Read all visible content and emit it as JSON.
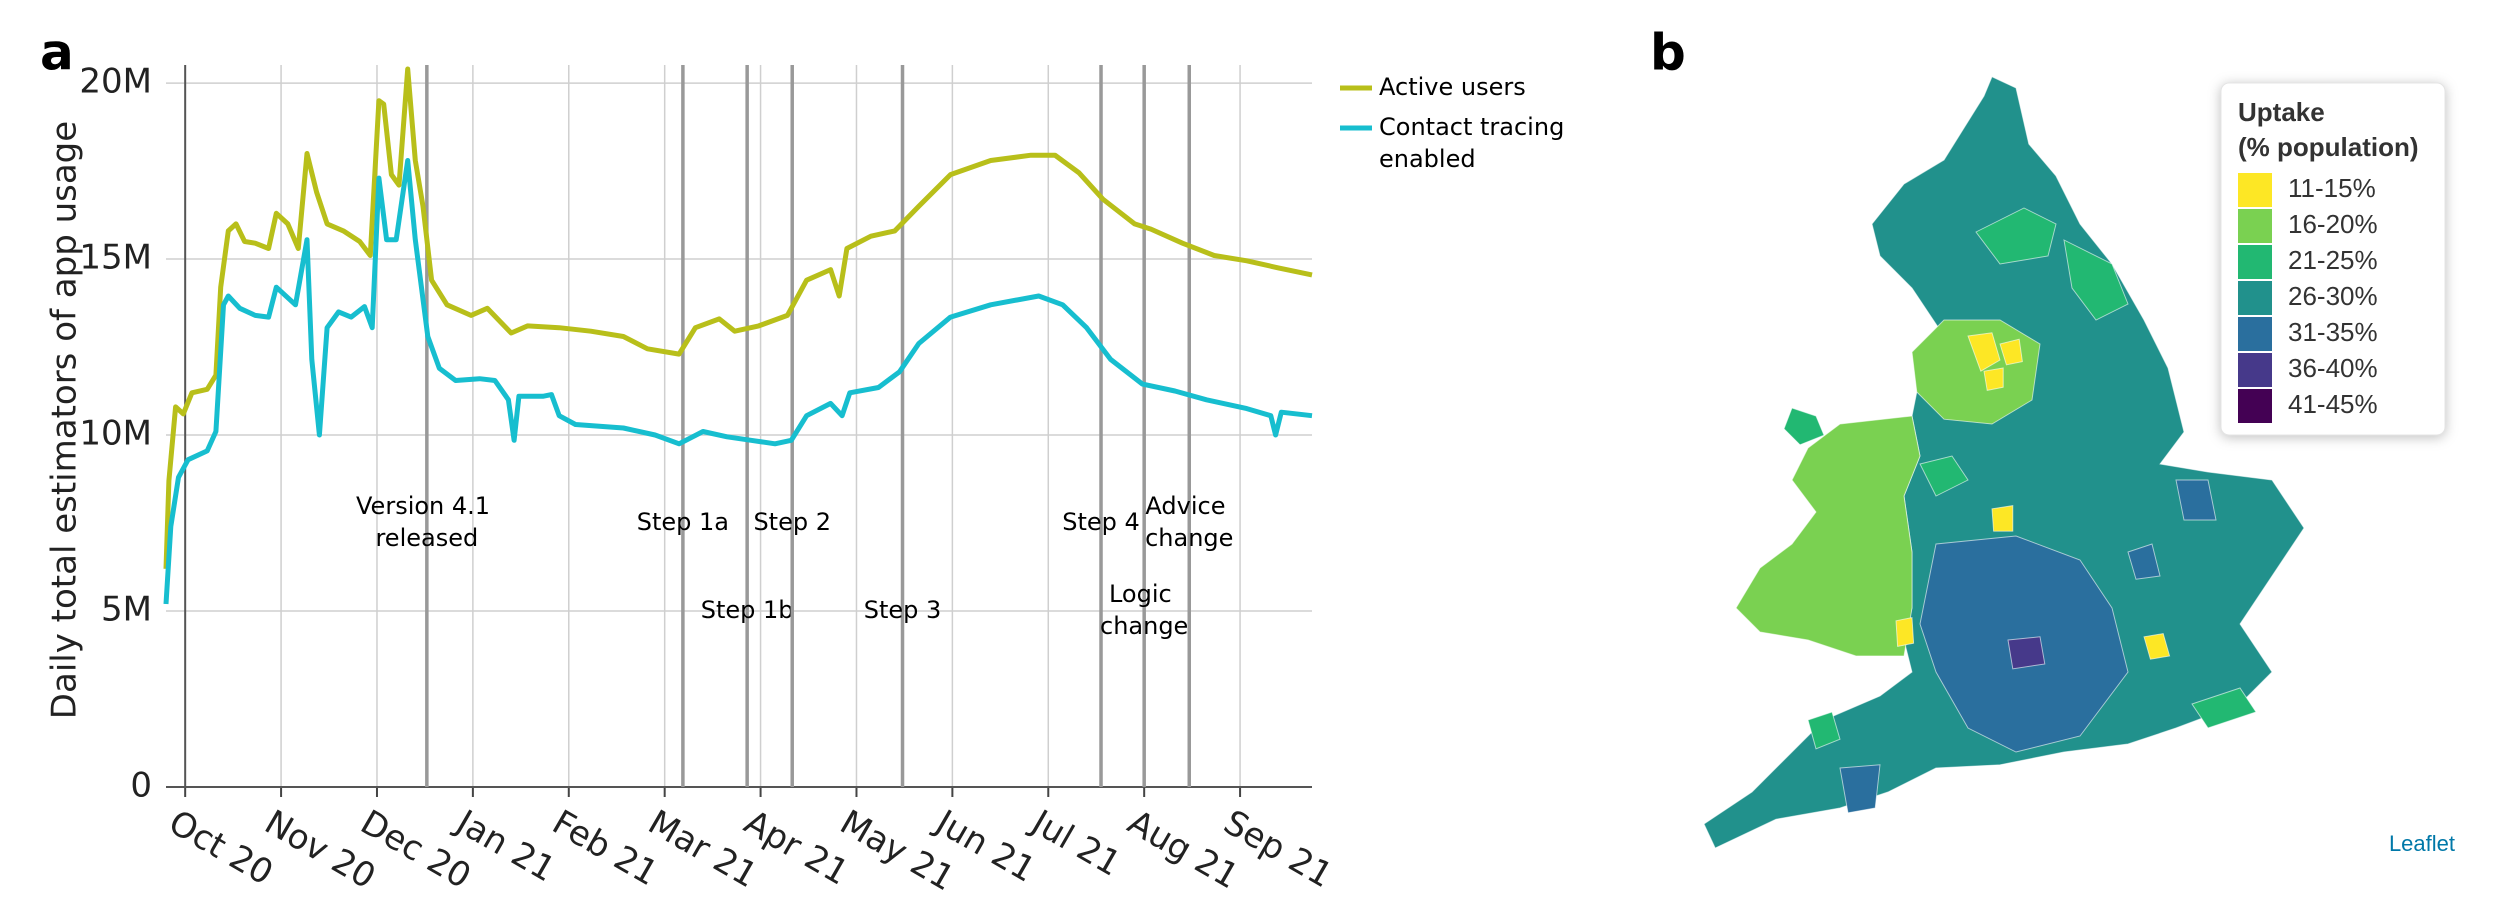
{
  "chart_data": {
    "type": "line",
    "panel_label": "a",
    "ylabel": "Daily total estimators of app usage",
    "xlim": [
      -0.2,
      11.75
    ],
    "xticks": [
      {
        "value": 0,
        "label": "Oct 20"
      },
      {
        "value": 1,
        "label": "Nov 20"
      },
      {
        "value": 2,
        "label": "Dec 20"
      },
      {
        "value": 3,
        "label": "Jan 21"
      },
      {
        "value": 4,
        "label": "Feb 21"
      },
      {
        "value": 5,
        "label": "Mar 21"
      },
      {
        "value": 6,
        "label": "Apr 21"
      },
      {
        "value": 7,
        "label": "May 21"
      },
      {
        "value": 8,
        "label": "Jun 21"
      },
      {
        "value": 9,
        "label": "Jul 21"
      },
      {
        "value": 10,
        "label": "Aug 21"
      },
      {
        "value": 11,
        "label": "Sep 21"
      }
    ],
    "ylim": [
      0,
      20.4
    ],
    "yticks": [
      0,
      {
        "value": 5,
        "label": "5M"
      },
      {
        "value": 10,
        "label": "10M"
      },
      {
        "value": 15,
        "label": "15M"
      },
      {
        "value": 20,
        "label": "20M"
      }
    ],
    "grid": true,
    "legend": "outside-right",
    "series": [
      {
        "name": "Active users",
        "color": "#b8bf1a",
        "x": [
          -0.2,
          -0.17,
          -0.1,
          -0.02,
          0.07,
          0.23,
          0.32,
          0.37,
          0.45,
          0.53,
          0.62,
          0.73,
          0.87,
          0.95,
          1.07,
          1.18,
          1.27,
          1.37,
          1.48,
          1.65,
          1.82,
          1.93,
          2.02,
          2.07,
          2.15,
          2.23,
          2.32,
          2.4,
          2.48,
          2.57,
          2.73,
          2.98,
          3.15,
          3.4,
          3.57,
          3.9,
          4.23,
          4.57,
          4.82,
          5.15,
          5.32,
          5.57,
          5.73,
          5.98,
          6.28,
          6.48,
          6.73,
          6.82,
          6.9,
          7.15,
          7.4,
          7.65,
          7.98,
          8.4,
          8.82,
          9.07,
          9.32,
          9.57,
          9.9,
          10.07,
          10.4,
          10.73,
          11.07,
          11.4,
          11.75
        ],
        "values": [
          6.2,
          8.7,
          10.8,
          10.6,
          11.2,
          11.3,
          11.7,
          14.2,
          15.8,
          16.0,
          15.5,
          15.45,
          15.3,
          16.3,
          16.0,
          15.3,
          18.0,
          16.9,
          16.0,
          15.8,
          15.5,
          15.1,
          19.5,
          19.4,
          17.4,
          17.1,
          20.4,
          17.8,
          16.5,
          14.4,
          13.7,
          13.4,
          13.6,
          12.9,
          13.1,
          13.05,
          12.95,
          12.8,
          12.45,
          12.3,
          13.05,
          13.3,
          12.95,
          13.1,
          13.4,
          14.4,
          14.7,
          13.95,
          15.3,
          15.65,
          15.8,
          16.5,
          17.4,
          17.8,
          17.95,
          17.95,
          17.45,
          16.7,
          16.0,
          15.85,
          15.45,
          15.1,
          14.95,
          14.75,
          14.55
        ]
      },
      {
        "name": "Contact tracing enabled",
        "color": "#17becf",
        "x": [
          -0.2,
          -0.15,
          -0.07,
          0.03,
          0.23,
          0.32,
          0.4,
          0.45,
          0.57,
          0.73,
          0.87,
          0.95,
          1.15,
          1.27,
          1.32,
          1.4,
          1.48,
          1.6,
          1.73,
          1.87,
          1.95,
          2.02,
          2.1,
          2.2,
          2.32,
          2.4,
          2.53,
          2.65,
          2.82,
          3.07,
          3.23,
          3.37,
          3.43,
          3.48,
          3.73,
          3.82,
          3.9,
          4.07,
          4.57,
          4.9,
          5.15,
          5.4,
          5.65,
          5.9,
          6.15,
          6.32,
          6.48,
          6.73,
          6.85,
          6.93,
          7.23,
          7.45,
          7.65,
          7.98,
          8.4,
          8.9,
          9.15,
          9.4,
          9.65,
          9.98,
          10.32,
          10.65,
          11.07,
          11.32,
          11.37,
          11.43,
          11.75
        ],
        "values": [
          5.2,
          7.4,
          8.8,
          9.3,
          9.55,
          10.1,
          13.7,
          13.95,
          13.6,
          13.4,
          13.35,
          14.2,
          13.7,
          15.55,
          12.15,
          10.0,
          13.05,
          13.5,
          13.35,
          13.65,
          13.05,
          17.3,
          15.55,
          15.55,
          17.8,
          15.55,
          12.8,
          11.9,
          11.55,
          11.6,
          11.55,
          11.0,
          9.85,
          11.1,
          11.1,
          11.15,
          10.55,
          10.3,
          10.2,
          10.0,
          9.75,
          10.1,
          9.95,
          9.85,
          9.75,
          9.85,
          10.55,
          10.9,
          10.55,
          11.2,
          11.35,
          11.8,
          12.6,
          13.35,
          13.7,
          13.95,
          13.7,
          13.05,
          12.15,
          11.45,
          11.25,
          11.0,
          10.75,
          10.55,
          10.0,
          10.65,
          10.55
        ]
      }
    ],
    "annotations": [
      {
        "x": 2.52,
        "label": "Version 4.1 released"
      },
      {
        "x": 5.19,
        "label": "Step 1a"
      },
      {
        "x": 5.86,
        "label": "Step 1b"
      },
      {
        "x": 6.33,
        "label": "Step 2"
      },
      {
        "x": 7.48,
        "label": "Step 3"
      },
      {
        "x": 9.55,
        "label": "Step 4"
      },
      {
        "x": 10.0,
        "label": "Logic change"
      },
      {
        "x": 10.47,
        "label": "Advice change"
      }
    ]
  },
  "map": {
    "panel_label": "b",
    "legend_title": "Uptake",
    "legend_subtitle": "(% population)",
    "classes": [
      {
        "label": "11-15%",
        "color": "#fde725"
      },
      {
        "label": "16-20%",
        "color": "#7ad151"
      },
      {
        "label": "21-25%",
        "color": "#22b872"
      },
      {
        "label": "26-30%",
        "color": "#21918c"
      },
      {
        "label": "31-35%",
        "color": "#2a6f9e"
      },
      {
        "label": "36-40%",
        "color": "#46398a"
      },
      {
        "label": "41-45%",
        "color": "#440154"
      }
    ],
    "attribution": "Leaflet"
  }
}
